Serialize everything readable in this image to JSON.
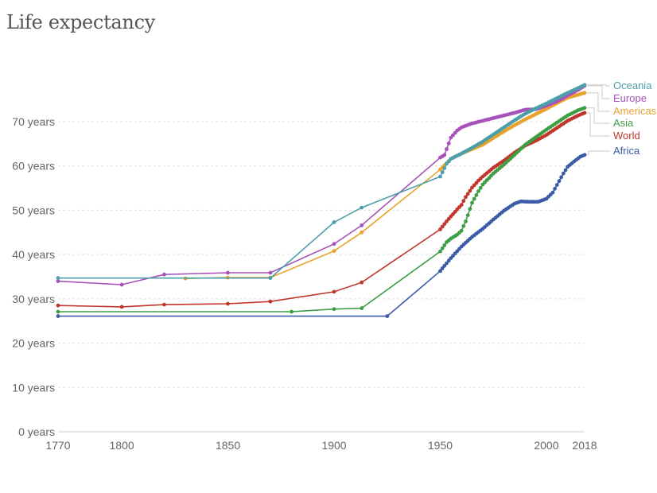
{
  "chart_data": {
    "type": "line",
    "title": "Life expectancy",
    "xlabel": "",
    "ylabel": "",
    "xlim": [
      1770,
      2018
    ],
    "ylim": [
      0,
      80
    ],
    "x_ticks": [
      {
        "value": 1770,
        "label": "1770"
      },
      {
        "value": 1800,
        "label": "1800"
      },
      {
        "value": 1850,
        "label": "1850"
      },
      {
        "value": 1900,
        "label": "1900"
      },
      {
        "value": 1950,
        "label": "1950"
      },
      {
        "value": 2000,
        "label": "2000"
      },
      {
        "value": 2018,
        "label": "2018"
      }
    ],
    "y_ticks": [
      {
        "value": 0,
        "label": "0 years"
      },
      {
        "value": 10,
        "label": "10 years"
      },
      {
        "value": 20,
        "label": "20 years"
      },
      {
        "value": 30,
        "label": "30 years"
      },
      {
        "value": 40,
        "label": "40 years"
      },
      {
        "value": 50,
        "label": "50 years"
      },
      {
        "value": 60,
        "label": "60 years"
      },
      {
        "value": 70,
        "label": "70 years"
      }
    ],
    "grid": "horizontal-dashed",
    "legend": "right",
    "series": [
      {
        "name": "Oceania",
        "color": "#4C9FA9",
        "sparse": [
          [
            1770,
            34.7
          ],
          [
            1870,
            34.7
          ],
          [
            1900,
            47.3
          ],
          [
            1913,
            50.6
          ]
        ],
        "annual_anchors": [
          [
            1950,
            57.6
          ],
          [
            1953,
            60.5
          ],
          [
            1955,
            61.6
          ],
          [
            1960,
            62.8
          ],
          [
            1965,
            64.1
          ],
          [
            1970,
            65.5
          ],
          [
            1975,
            67.1
          ],
          [
            1980,
            68.7
          ],
          [
            1985,
            70.3
          ],
          [
            1990,
            71.8
          ],
          [
            1995,
            73.0
          ],
          [
            2000,
            74.1
          ],
          [
            2005,
            75.3
          ],
          [
            2010,
            76.5
          ],
          [
            2015,
            77.6
          ],
          [
            2018,
            78.3
          ]
        ]
      },
      {
        "name": "Europe",
        "color": "#A652BA",
        "sparse": [
          [
            1770,
            34.0
          ],
          [
            1800,
            33.2
          ],
          [
            1820,
            35.5
          ],
          [
            1850,
            35.9
          ],
          [
            1870,
            35.9
          ],
          [
            1900,
            42.4
          ],
          [
            1913,
            46.6
          ]
        ],
        "annual_anchors": [
          [
            1950,
            61.9
          ],
          [
            1952,
            62.5
          ],
          [
            1955,
            66.4
          ],
          [
            1958,
            68.0
          ],
          [
            1960,
            68.7
          ],
          [
            1965,
            69.6
          ],
          [
            1970,
            70.2
          ],
          [
            1975,
            70.8
          ],
          [
            1980,
            71.4
          ],
          [
            1985,
            72.0
          ],
          [
            1990,
            72.7
          ],
          [
            1995,
            72.8
          ],
          [
            2000,
            73.6
          ],
          [
            2005,
            74.6
          ],
          [
            2010,
            75.9
          ],
          [
            2015,
            77.2
          ],
          [
            2018,
            78.1
          ]
        ]
      },
      {
        "name": "Americas",
        "color": "#E8A22C",
        "sparse": [
          [
            1830,
            34.6
          ],
          [
            1850,
            34.8
          ],
          [
            1870,
            34.8
          ],
          [
            1900,
            40.8
          ],
          [
            1913,
            45.0
          ]
        ],
        "annual_anchors": [
          [
            1950,
            59.2
          ],
          [
            1955,
            61.6
          ],
          [
            1960,
            62.8
          ],
          [
            1965,
            63.8
          ],
          [
            1970,
            64.8
          ],
          [
            1975,
            66.3
          ],
          [
            1980,
            67.8
          ],
          [
            1985,
            69.2
          ],
          [
            1990,
            70.5
          ],
          [
            1995,
            71.7
          ],
          [
            2000,
            72.9
          ],
          [
            2005,
            74.2
          ],
          [
            2010,
            75.4
          ],
          [
            2015,
            76.1
          ],
          [
            2018,
            76.5
          ]
        ]
      },
      {
        "name": "Asia",
        "color": "#3E9E44",
        "sparse": [
          [
            1770,
            27.1
          ],
          [
            1880,
            27.1
          ],
          [
            1900,
            27.7
          ],
          [
            1913,
            27.9
          ]
        ],
        "annual_anchors": [
          [
            1950,
            40.7
          ],
          [
            1953,
            42.8
          ],
          [
            1955,
            43.6
          ],
          [
            1958,
            44.5
          ],
          [
            1960,
            45.4
          ],
          [
            1962,
            47.5
          ],
          [
            1965,
            51.7
          ],
          [
            1968,
            54.3
          ],
          [
            1970,
            55.8
          ],
          [
            1975,
            58.3
          ],
          [
            1980,
            60.3
          ],
          [
            1985,
            62.5
          ],
          [
            1990,
            64.8
          ],
          [
            1995,
            66.5
          ],
          [
            2000,
            68.2
          ],
          [
            2005,
            69.8
          ],
          [
            2010,
            71.4
          ],
          [
            2015,
            72.6
          ],
          [
            2018,
            73.1
          ]
        ]
      },
      {
        "name": "World",
        "color": "#C1362B",
        "sparse": [
          [
            1770,
            28.5
          ],
          [
            1800,
            28.2
          ],
          [
            1820,
            28.7
          ],
          [
            1850,
            28.9
          ],
          [
            1870,
            29.4
          ],
          [
            1900,
            31.6
          ],
          [
            1913,
            33.7
          ]
        ],
        "annual_anchors": [
          [
            1950,
            45.7
          ],
          [
            1953,
            47.5
          ],
          [
            1955,
            48.6
          ],
          [
            1958,
            50.2
          ],
          [
            1960,
            51.2
          ],
          [
            1962,
            53.0
          ],
          [
            1965,
            55.1
          ],
          [
            1968,
            56.7
          ],
          [
            1970,
            57.6
          ],
          [
            1975,
            59.6
          ],
          [
            1980,
            61.2
          ],
          [
            1985,
            63.0
          ],
          [
            1990,
            64.6
          ],
          [
            1995,
            65.7
          ],
          [
            2000,
            67.0
          ],
          [
            2005,
            68.6
          ],
          [
            2010,
            70.2
          ],
          [
            2015,
            71.4
          ],
          [
            2018,
            72.0
          ]
        ]
      },
      {
        "name": "Africa",
        "color": "#3B5BA8",
        "sparse": [
          [
            1770,
            26.1
          ],
          [
            1925,
            26.1
          ]
        ],
        "annual_anchors": [
          [
            1950,
            36.3
          ],
          [
            1955,
            39.2
          ],
          [
            1960,
            41.8
          ],
          [
            1965,
            44.0
          ],
          [
            1970,
            45.8
          ],
          [
            1975,
            47.9
          ],
          [
            1980,
            49.9
          ],
          [
            1985,
            51.5
          ],
          [
            1988,
            52.0
          ],
          [
            1992,
            51.9
          ],
          [
            1996,
            51.9
          ],
          [
            2000,
            52.6
          ],
          [
            2003,
            54.0
          ],
          [
            2006,
            56.6
          ],
          [
            2008,
            58.3
          ],
          [
            2010,
            59.8
          ],
          [
            2013,
            61.0
          ],
          [
            2016,
            62.1
          ],
          [
            2018,
            62.5
          ]
        ]
      }
    ]
  }
}
